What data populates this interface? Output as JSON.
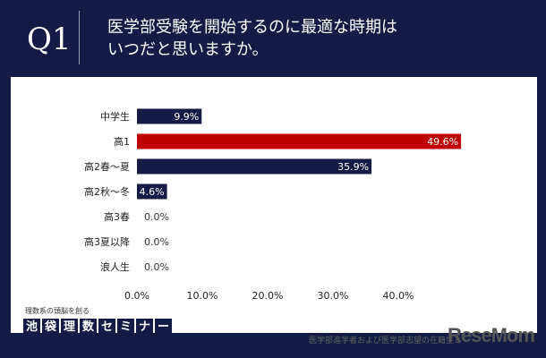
{
  "header": {
    "q": "Q1",
    "title_line1": "医学部受験を開始するのに最適な時期は",
    "title_line2": "いつだと思いますか。"
  },
  "chart_data": {
    "type": "bar",
    "orientation": "horizontal",
    "categories": [
      "中学生",
      "高1",
      "高2春～夏",
      "高2秋～冬",
      "高3春",
      "高3夏以降",
      "浪人生"
    ],
    "values": [
      9.9,
      49.6,
      35.9,
      4.6,
      0.0,
      0.0,
      0.0
    ],
    "data_labels": [
      "9.9%",
      "49.6%",
      "35.9%",
      "4.6%",
      "0.0%",
      "0.0%",
      "0.0%"
    ],
    "bar_colors": [
      "#141c45",
      "#c00000",
      "#141c45",
      "#141c45",
      "#141c45",
      "#141c45",
      "#141c45"
    ],
    "xlim": [
      0,
      50
    ],
    "xticks": [
      "0.0%",
      "10.0%",
      "20.0%",
      "30.0%",
      "40.0%"
    ],
    "grid": false
  },
  "footer": {
    "brand_sub": "理数系の頭脳を創る",
    "brand_chars": [
      "池",
      "袋",
      "理",
      "数",
      "セ",
      "ミ",
      "ナ",
      "ー"
    ],
    "note": "医学部進学者および医学部志望の在籍生と",
    "logo": "ReseMom"
  }
}
